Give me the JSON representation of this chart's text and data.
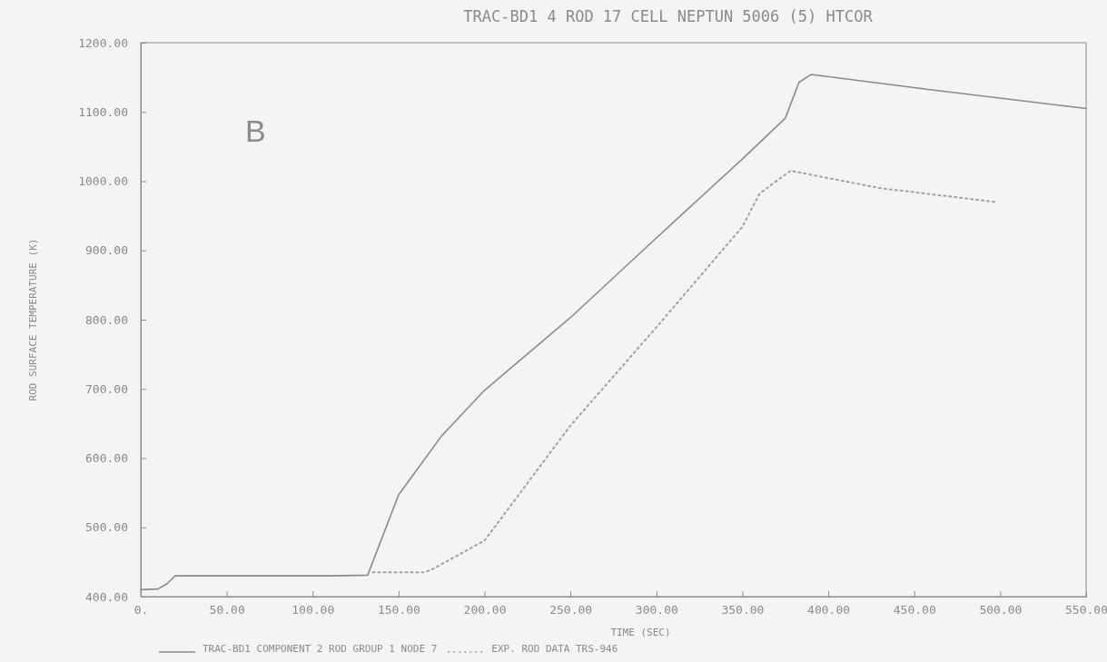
{
  "chart_data": {
    "type": "line",
    "title": "TRAC-BD1 4 ROD 17 CELL NEPTUN 5006 (5) HTCOR",
    "xlabel": "TIME (SEC)",
    "ylabel": "ROD SURFACE TEMPERATURE   (K)",
    "annotations": [
      "B"
    ],
    "xlim": [
      0,
      550
    ],
    "ylim": [
      400,
      1200
    ],
    "xticks": [
      {
        "value": 0,
        "label": "0."
      },
      {
        "value": 50,
        "label": "50.00"
      },
      {
        "value": 100,
        "label": "100.00"
      },
      {
        "value": 150,
        "label": "150.00"
      },
      {
        "value": 200,
        "label": "200.00"
      },
      {
        "value": 250,
        "label": "250.00"
      },
      {
        "value": 300,
        "label": "300.00"
      },
      {
        "value": 350,
        "label": "350.00"
      },
      {
        "value": 400,
        "label": "400.00"
      },
      {
        "value": 450,
        "label": "450.00"
      },
      {
        "value": 500,
        "label": "500.00"
      },
      {
        "value": 550,
        "label": "550.00"
      }
    ],
    "yticks": [
      {
        "value": 400,
        "label": "400.00"
      },
      {
        "value": 500,
        "label": "500.00"
      },
      {
        "value": 600,
        "label": "600.00"
      },
      {
        "value": 700,
        "label": "700.00"
      },
      {
        "value": 800,
        "label": "800.00"
      },
      {
        "value": 900,
        "label": "900.00"
      },
      {
        "value": 1000,
        "label": "1000.00"
      },
      {
        "value": 1100,
        "label": "1100.00"
      },
      {
        "value": 1200,
        "label": "1200.00"
      }
    ],
    "legend": "bottom",
    "marker": "none",
    "series": [
      {
        "name": "TRAC-BD1 COMPONENT  2  ROD GROUP  1  NODE  7",
        "color": "#8a8a8a",
        "line_style": "solid",
        "x": [
          0,
          10,
          15,
          20,
          60,
          107,
          111,
          132,
          150,
          175,
          200,
          250,
          300,
          350,
          375,
          383,
          390,
          450,
          550
        ],
        "values": [
          410,
          411,
          418,
          430,
          430,
          430,
          430,
          431,
          547,
          632,
          698,
          803,
          918,
          1032,
          1091,
          1143,
          1154,
          1135,
          1105
        ]
      },
      {
        "name": "EXP. ROD DATA TRS-946",
        "color": "#a0a0a0",
        "line_style": "dotted",
        "x": [
          135,
          165,
          170,
          200,
          250,
          300,
          350,
          360,
          367,
          378,
          430,
          497
        ],
        "values": [
          435,
          435,
          440,
          481,
          647,
          789,
          934,
          982,
          995,
          1015,
          990,
          970
        ]
      }
    ]
  }
}
